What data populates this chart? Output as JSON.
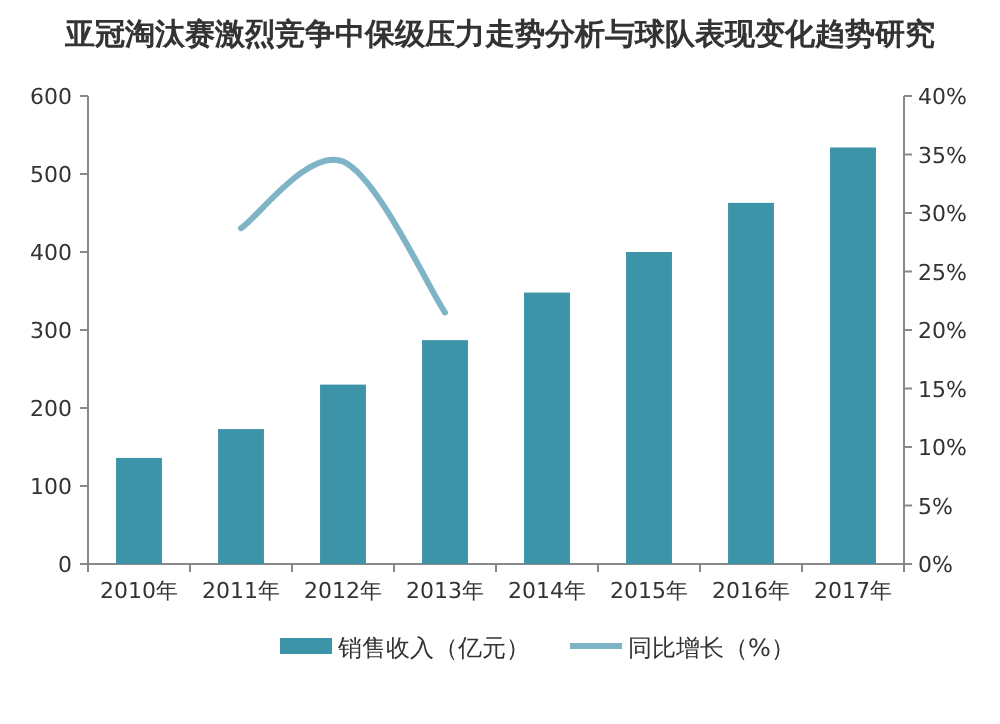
{
  "chart_data": {
    "type": "bar",
    "title": "亚冠淘汰赛激烈竞争中保级压力走势分析与球队表现变化趋势研究",
    "categories": [
      "2010年",
      "2011年",
      "2012年",
      "2013年",
      "2014年",
      "2015年",
      "2016年",
      "2017年"
    ],
    "series": [
      {
        "name": "销售收入（亿元）",
        "color": "#3d93a8",
        "values": [
          136,
          173,
          230,
          287,
          348,
          400,
          463,
          534
        ]
      },
      {
        "name": "同比增长（%）",
        "type": "line",
        "axis": "y2",
        "color": "#7fb3c6",
        "values": [
          null,
          28.7,
          34.4,
          21.5,
          null,
          null,
          null,
          null
        ]
      }
    ],
    "ylim": [
      0,
      600
    ],
    "yticks": [
      0,
      100,
      200,
      300,
      400,
      500,
      600
    ],
    "y2lim": [
      0,
      40
    ],
    "y2ticks": [
      {
        "value": 0,
        "label": "0%"
      },
      {
        "value": 5,
        "label": "5%"
      },
      {
        "value": 10,
        "label": "10%"
      },
      {
        "value": 15,
        "label": "15%"
      },
      {
        "value": 20,
        "label": "20%"
      },
      {
        "value": 25,
        "label": "25%"
      },
      {
        "value": 30,
        "label": "30%"
      },
      {
        "value": 35,
        "label": "35%"
      },
      {
        "value": 40,
        "label": "40%"
      }
    ],
    "grid": false,
    "legend": "bottom",
    "marker": "none"
  }
}
